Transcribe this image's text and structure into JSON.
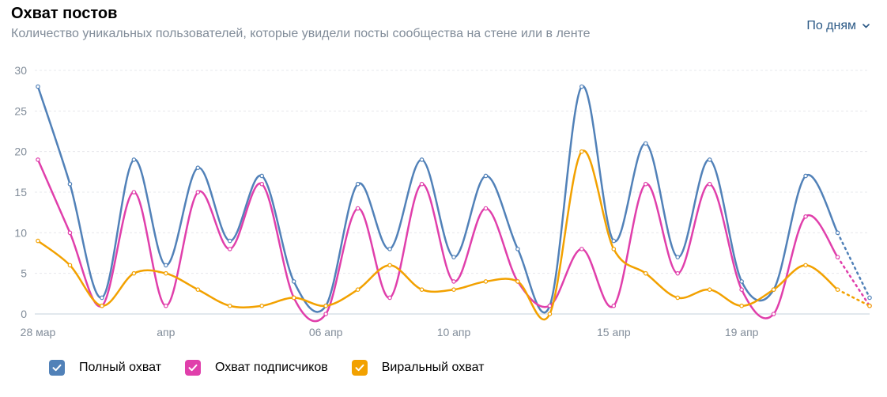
{
  "header": {
    "title": "Охват постов",
    "subtitle": "Количество уникальных пользователей, которые увидели посты сообщества на стене или в ленте",
    "period_label": "По дням"
  },
  "chart_data": {
    "type": "line",
    "ylim": [
      0,
      30
    ],
    "yticks": [
      0,
      5,
      10,
      15,
      20,
      25,
      30
    ],
    "x_dates": [
      "28 мар",
      "29 мар",
      "30 мар",
      "31 мар",
      "01 апр",
      "02 апр",
      "03 апр",
      "04 апр",
      "05 апр",
      "06 апр",
      "07 апр",
      "08 апр",
      "09 апр",
      "10 апр",
      "11 апр",
      "12 апр",
      "13 апр",
      "14 апр",
      "15 апр",
      "16 апр",
      "17 апр",
      "18 апр",
      "19 апр",
      "20 апр",
      "21 апр",
      "22 апр",
      "23 апр"
    ],
    "xticks": [
      {
        "index": 0,
        "label": "28 мар"
      },
      {
        "index": 4,
        "label": "апр"
      },
      {
        "index": 9,
        "label": "06 апр"
      },
      {
        "index": 13,
        "label": "10 апр"
      },
      {
        "index": 18,
        "label": "15 апр"
      },
      {
        "index": 22,
        "label": "19 апр"
      }
    ],
    "grid": true,
    "legend_position": "bottom-left",
    "series": [
      {
        "name": "Полный охват",
        "color": "#5181b8",
        "values": [
          28,
          16,
          2,
          19,
          6,
          18,
          9,
          17,
          4,
          1,
          16,
          8,
          19,
          7,
          17,
          8,
          1,
          28,
          9,
          21,
          7,
          19,
          4,
          3,
          17,
          10,
          2
        ]
      },
      {
        "name": "Охват подписчиков",
        "color": "#e03fab",
        "values": [
          19,
          10,
          1,
          15,
          1,
          15,
          8,
          16,
          2,
          0,
          13,
          2,
          16,
          4,
          13,
          4,
          1,
          8,
          1,
          16,
          5,
          16,
          3,
          0,
          12,
          7,
          1
        ]
      },
      {
        "name": "Виральный охват",
        "color": "#f2a100",
        "values": [
          9,
          6,
          1,
          5,
          5,
          3,
          1,
          1,
          2,
          1,
          3,
          6,
          3,
          3,
          4,
          4,
          0,
          20,
          8,
          5,
          2,
          3,
          1,
          3,
          6,
          3,
          1
        ]
      }
    ]
  }
}
